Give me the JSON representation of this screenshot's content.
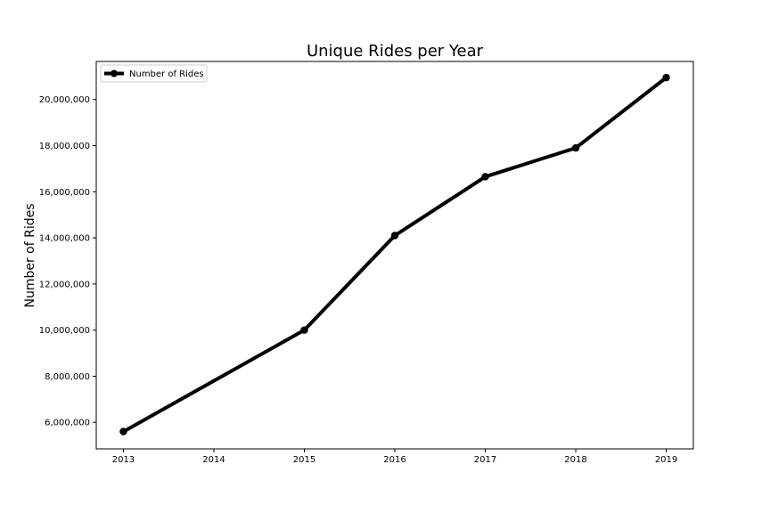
{
  "chart_data": {
    "type": "line",
    "title": "Unique Rides per Year",
    "xlabel": "",
    "ylabel": "Number of Rides",
    "x": [
      2013,
      2015,
      2016,
      2017,
      2018,
      2019
    ],
    "x_ticks": [
      "2013",
      "2014",
      "2015",
      "2016",
      "2017",
      "2018",
      "2019"
    ],
    "y_ticks": [
      "6,000,000",
      "8,000,000",
      "10,000,000",
      "12,000,000",
      "14,000,000",
      "16,000,000",
      "18,000,000",
      "20,000,000"
    ],
    "xlim": [
      2012.7,
      2019.3
    ],
    "ylim": [
      4850000,
      21650000
    ],
    "grid": false,
    "legend_position": "top-left",
    "series": [
      {
        "name": "Number of Rides",
        "color": "#000000",
        "marker": "circle",
        "values": [
          5600000,
          10000000,
          14100000,
          16650000,
          17900000,
          20950000
        ]
      }
    ]
  }
}
